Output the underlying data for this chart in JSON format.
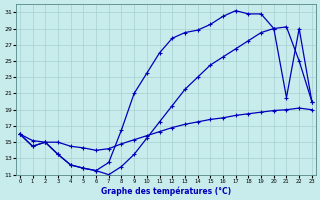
{
  "title": "Graphe des températures (°C)",
  "bg_color": "#c8ecec",
  "grid_color": "#a8d0d0",
  "line_color": "#0000bb",
  "xlim": [
    0,
    23
  ],
  "ylim": [
    11,
    32
  ],
  "xticks": [
    0,
    1,
    2,
    3,
    4,
    5,
    6,
    7,
    8,
    9,
    10,
    11,
    12,
    13,
    14,
    15,
    16,
    17,
    18,
    19,
    20,
    21,
    22,
    23
  ],
  "yticks": [
    11,
    13,
    15,
    17,
    19,
    21,
    23,
    25,
    27,
    29,
    31
  ],
  "line_top": {
    "x": [
      0,
      1,
      2,
      3,
      4,
      5,
      6,
      7,
      8,
      9,
      10,
      11,
      12,
      13,
      14,
      15,
      16,
      17,
      18,
      19,
      20,
      21,
      22,
      23
    ],
    "y": [
      16.0,
      14.5,
      15.0,
      13.5,
      12.2,
      11.8,
      11.5,
      12.5,
      16.5,
      21.0,
      23.5,
      26.0,
      27.8,
      28.5,
      28.8,
      29.5,
      30.5,
      31.2,
      30.8,
      30.8,
      29.0,
      29.2,
      25.0,
      20.0
    ]
  },
  "line_mid": {
    "x": [
      0,
      1,
      2,
      3,
      4,
      5,
      6,
      7,
      8,
      9,
      10,
      11,
      12,
      13,
      14,
      15,
      16,
      17,
      18,
      19,
      20,
      21,
      22,
      23
    ],
    "y": [
      16.0,
      15.2,
      15.0,
      15.0,
      14.5,
      14.3,
      14.0,
      14.2,
      14.8,
      15.3,
      15.8,
      16.3,
      16.8,
      17.2,
      17.5,
      17.8,
      18.0,
      18.3,
      18.5,
      18.7,
      18.9,
      19.0,
      19.2,
      19.0
    ]
  },
  "line_bot": {
    "x": [
      0,
      1,
      2,
      3,
      4,
      5,
      6,
      7,
      8,
      9,
      10,
      11,
      12,
      13,
      14,
      15,
      16,
      17,
      18,
      19,
      20,
      21,
      22,
      23
    ],
    "y": [
      16.0,
      14.5,
      15.0,
      13.5,
      12.2,
      11.8,
      11.5,
      11.0,
      12.0,
      13.5,
      15.5,
      17.5,
      19.5,
      21.5,
      23.0,
      24.5,
      25.5,
      26.5,
      27.5,
      28.5,
      29.0,
      20.5,
      29.0,
      20.0
    ]
  }
}
